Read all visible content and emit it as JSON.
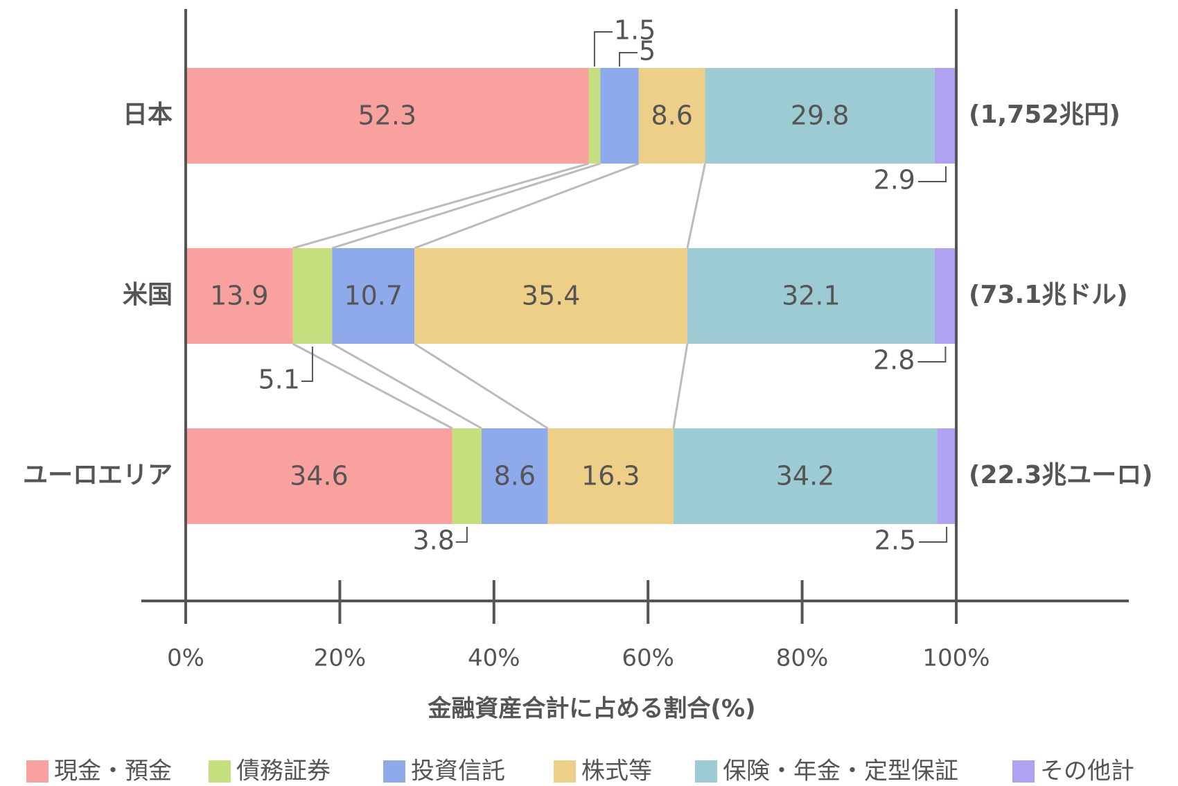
{
  "chart_data": {
    "type": "stacked-barh",
    "xlabel": "金融資産合計に占める割合(%)",
    "categories": [
      "日本",
      "米国",
      "ユーロエリア"
    ],
    "annotations": [
      "(1,752兆円)",
      "(73.1兆ドル)",
      "(22.3兆ユーロ)"
    ],
    "series": [
      {
        "name": "現金・預金",
        "color": "#f9a19e",
        "values": [
          52.3,
          13.9,
          34.6
        ]
      },
      {
        "name": "債務証券",
        "color": "#c5df7f",
        "values": [
          1.5,
          5.1,
          3.8
        ]
      },
      {
        "name": "投資信託",
        "color": "#8eaaea",
        "values": [
          5.0,
          10.7,
          8.6
        ]
      },
      {
        "name": "株式等",
        "color": "#eecf87",
        "values": [
          8.6,
          35.4,
          16.3
        ]
      },
      {
        "name": "保険・年金・定型保証",
        "color": "#9ccbd3",
        "values": [
          29.8,
          32.1,
          34.2
        ]
      },
      {
        "name": "その他計",
        "color": "#b0a2f0",
        "values": [
          2.9,
          2.8,
          2.5
        ]
      }
    ],
    "xlim": [
      0,
      100
    ],
    "xticks": [
      {
        "value": 0,
        "label": "0%"
      },
      {
        "value": 20,
        "label": "20%"
      },
      {
        "value": 40,
        "label": "40%"
      },
      {
        "value": 60,
        "label": "60%"
      },
      {
        "value": 80,
        "label": "80%"
      },
      {
        "value": 100,
        "label": "100%"
      }
    ],
    "grid": false
  }
}
